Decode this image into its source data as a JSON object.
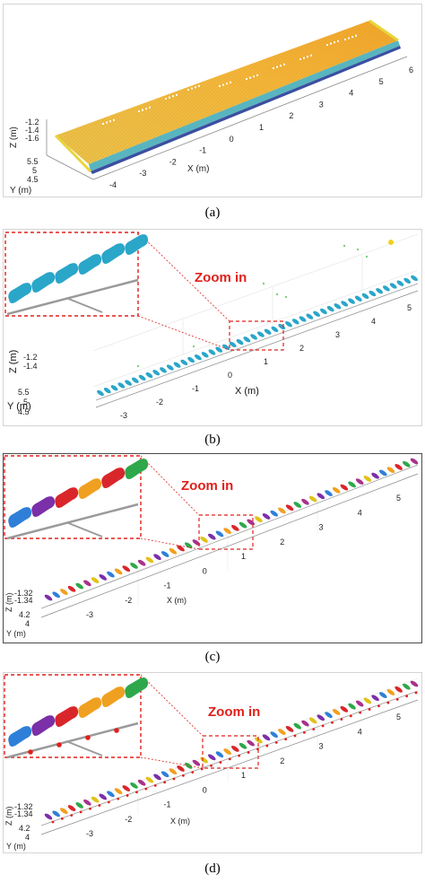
{
  "captions": [
    "(a)",
    "(b)",
    "(c)",
    "(d)"
  ],
  "zoom_label": "Zoom in",
  "panel_a": {
    "x_label": "X (m)",
    "y_label": "Y (m)",
    "z_label": "Z (m)",
    "x_ticks": [
      "-4",
      "-3",
      "-2",
      "-1",
      "0",
      "1",
      "2",
      "3",
      "4",
      "5",
      "6"
    ],
    "y_ticks": [
      "5.5",
      "5",
      "4.5"
    ],
    "z_ticks": [
      "-1.2",
      "-1.4",
      "-1.6"
    ]
  },
  "panel_b": {
    "x_label": "X (m)",
    "y_label": "Y (m)",
    "z_label": "Z (m)",
    "x_ticks": [
      "-3",
      "-2",
      "-1",
      "0",
      "1",
      "2",
      "3",
      "4",
      "5"
    ],
    "y_ticks": [
      "5.5",
      "5",
      "4.5"
    ],
    "z_ticks": [
      "-1.2",
      "-1.4"
    ]
  },
  "panel_c": {
    "x_label": "X (m)",
    "y_label": "Y (m)",
    "z_label": "Z (m)",
    "x_ticks": [
      "-3",
      "-2",
      "-1",
      "0",
      "1",
      "2",
      "3",
      "4",
      "5"
    ],
    "y_ticks": [
      "4.2",
      "4"
    ],
    "z_ticks": [
      "-1.32",
      "-1.34"
    ]
  },
  "panel_d": {
    "x_label": "X (m)",
    "y_label": "Y (m)",
    "z_label": "Z (m)",
    "x_ticks": [
      "-3",
      "-2",
      "-1",
      "0",
      "1",
      "2",
      "3",
      "4",
      "5"
    ],
    "y_ticks": [
      "4.2",
      "4"
    ],
    "z_ticks": [
      "-1.32",
      "-1.34"
    ]
  },
  "colors": {
    "surface": "#f2b233",
    "surface_edge": "#6fb6c4",
    "cluster_teal": "#2aa6c9",
    "zoom_red": "#e0201b",
    "segment_palette": [
      "#7b2fa8",
      "#2f7fd8",
      "#f0a020",
      "#d9262a",
      "#2ea84a",
      "#a8328a",
      "#e0c21a"
    ]
  }
}
